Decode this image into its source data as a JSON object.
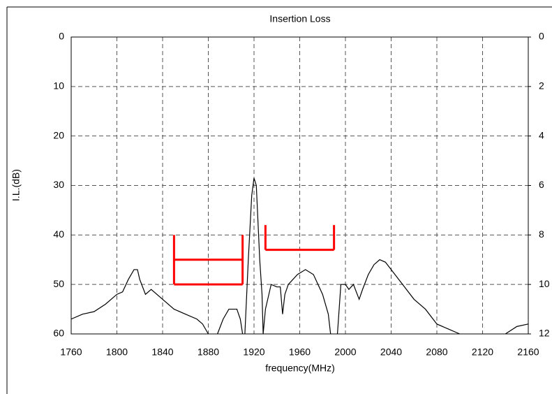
{
  "chart_data": {
    "type": "line",
    "title": "Insertion Loss",
    "xlabel": "frequency(MHz)",
    "ylabel": "I.L.(dB)",
    "xlim": [
      1760,
      2160
    ],
    "xticks": [
      1760,
      1800,
      1840,
      1880,
      1920,
      1960,
      2000,
      2040,
      2080,
      2120,
      2160
    ],
    "ylim": [
      0,
      60
    ],
    "yticks": [
      0,
      10,
      20,
      30,
      40,
      50,
      60
    ],
    "y_inverted": true,
    "y2lim": [
      0,
      12
    ],
    "y2ticks": [
      0,
      2,
      4,
      6,
      8,
      10,
      12
    ],
    "grid": true,
    "series": [
      {
        "color": "#000000",
        "x": [
          1760,
          1770,
          1780,
          1790,
          1800,
          1805,
          1810,
          1815,
          1818,
          1820,
          1825,
          1830,
          1840,
          1850,
          1860,
          1870,
          1875,
          1880,
          null,
          1888,
          1893,
          1898,
          1905,
          1908,
          1910,
          null,
          1912,
          1915,
          1918,
          1920,
          1922,
          1925,
          1927,
          1928,
          1930,
          1935,
          1940,
          1943,
          1945,
          1947,
          1950,
          1958,
          1965,
          1972,
          1980,
          1985,
          1987,
          null,
          1993,
          1996,
          2000,
          2003,
          2007,
          2012,
          2015,
          2020,
          2025,
          2030,
          2035,
          2040,
          2050,
          2060,
          2070,
          2080,
          2090,
          2100,
          null,
          2140,
          2150,
          2160
        ],
        "values": [
          57,
          56,
          55.5,
          54,
          52,
          51.5,
          49,
          47,
          47,
          49,
          52,
          51,
          53,
          55,
          56,
          57,
          58,
          60,
          null,
          60,
          57,
          55,
          55,
          57,
          60,
          null,
          60,
          45,
          32,
          28.5,
          30,
          45,
          52,
          60,
          55,
          50,
          50.5,
          50.5,
          56,
          52,
          50,
          48,
          47,
          48,
          52,
          56,
          60,
          null,
          60,
          50,
          50,
          51,
          50,
          53,
          51,
          48,
          46,
          45,
          45.5,
          47,
          50,
          53,
          55,
          58,
          59,
          60,
          null,
          60,
          58.5,
          58
        ]
      }
    ],
    "masks": [
      {
        "color": "#ff0000",
        "x": [
          1850,
          1850
        ],
        "y": [
          40,
          50
        ]
      },
      {
        "color": "#ff0000",
        "x": [
          1850,
          1910
        ],
        "y": [
          45,
          45
        ]
      },
      {
        "color": "#ff0000",
        "x": [
          1850,
          1910
        ],
        "y": [
          50,
          50
        ]
      },
      {
        "color": "#ff0000",
        "x": [
          1910,
          1910
        ],
        "y": [
          40,
          50
        ]
      },
      {
        "color": "#ff0000",
        "x": [
          1930,
          1930
        ],
        "y": [
          38,
          43
        ]
      },
      {
        "color": "#ff0000",
        "x": [
          1930,
          1990
        ],
        "y": [
          43,
          43
        ]
      },
      {
        "color": "#ff0000",
        "x": [
          1990,
          1990
        ],
        "y": [
          38,
          43
        ]
      }
    ]
  }
}
